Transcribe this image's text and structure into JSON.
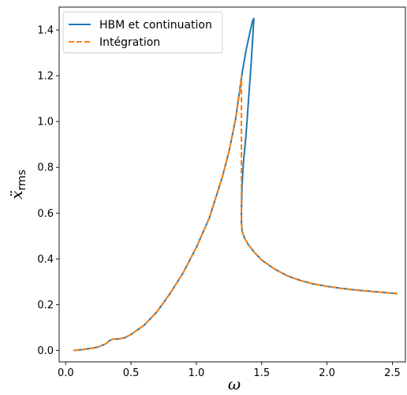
{
  "chart_data": {
    "type": "line",
    "xlabel": "ω",
    "ylabel_base": "ẍ",
    "ylabel_sub": "rms",
    "xlim": [
      -0.05,
      2.6
    ],
    "ylim": [
      -0.05,
      1.5
    ],
    "xticks": [
      0.0,
      0.5,
      1.0,
      1.5,
      2.0,
      2.5
    ],
    "xtick_labels": [
      "0.0",
      "0.5",
      "1.0",
      "1.5",
      "2.0",
      "2.5"
    ],
    "yticks": [
      0.0,
      0.2,
      0.4,
      0.6,
      0.8,
      1.0,
      1.2,
      1.4
    ],
    "ytick_labels": [
      "0.0",
      "0.2",
      "0.4",
      "0.6",
      "0.8",
      "1.0",
      "1.2",
      "1.4"
    ],
    "grid": false,
    "legend_position": "top-left",
    "series": [
      {
        "name": "HBM et continuation",
        "color": "#1f77b4",
        "style": "solid",
        "x": [
          0.06,
          0.15,
          0.25,
          0.31,
          0.34,
          0.37,
          0.4,
          0.45,
          0.5,
          0.6,
          0.7,
          0.8,
          0.9,
          1.0,
          1.1,
          1.2,
          1.25,
          1.3,
          1.35,
          1.38,
          1.41,
          1.43,
          1.44,
          1.435,
          1.42,
          1.4,
          1.38,
          1.36,
          1.35,
          1.345,
          1.345,
          1.35,
          1.37,
          1.4,
          1.45,
          1.5,
          1.6,
          1.7,
          1.8,
          1.9,
          2.0,
          2.1,
          2.2,
          2.3,
          2.4,
          2.5,
          2.54
        ],
        "y": [
          0.0,
          0.005,
          0.015,
          0.03,
          0.045,
          0.05,
          0.05,
          0.055,
          0.07,
          0.11,
          0.17,
          0.25,
          0.34,
          0.45,
          0.58,
          0.76,
          0.87,
          1.01,
          1.21,
          1.31,
          1.39,
          1.44,
          1.45,
          1.4,
          1.26,
          1.1,
          0.94,
          0.82,
          0.72,
          0.62,
          0.56,
          0.52,
          0.49,
          0.46,
          0.425,
          0.395,
          0.355,
          0.325,
          0.305,
          0.29,
          0.28,
          0.272,
          0.265,
          0.26,
          0.255,
          0.25,
          0.248
        ]
      },
      {
        "name": "Intégration",
        "color": "#ff7f0e",
        "style": "dashed",
        "x": [
          0.06,
          0.15,
          0.25,
          0.31,
          0.34,
          0.37,
          0.4,
          0.45,
          0.5,
          0.6,
          0.7,
          0.8,
          0.9,
          1.0,
          1.1,
          1.2,
          1.25,
          1.3,
          1.33,
          1.345,
          1.345,
          1.345,
          1.35,
          1.37,
          1.4,
          1.45,
          1.5,
          1.6,
          1.7,
          1.8,
          1.9,
          2.0,
          2.1,
          2.2,
          2.3,
          2.4,
          2.5,
          2.54
        ],
        "y": [
          0.0,
          0.005,
          0.015,
          0.03,
          0.045,
          0.05,
          0.05,
          0.055,
          0.07,
          0.11,
          0.17,
          0.25,
          0.34,
          0.45,
          0.58,
          0.76,
          0.87,
          1.01,
          1.12,
          1.2,
          0.9,
          0.58,
          0.52,
          0.49,
          0.46,
          0.425,
          0.395,
          0.355,
          0.325,
          0.305,
          0.29,
          0.28,
          0.272,
          0.265,
          0.26,
          0.255,
          0.25,
          0.248
        ]
      }
    ]
  }
}
